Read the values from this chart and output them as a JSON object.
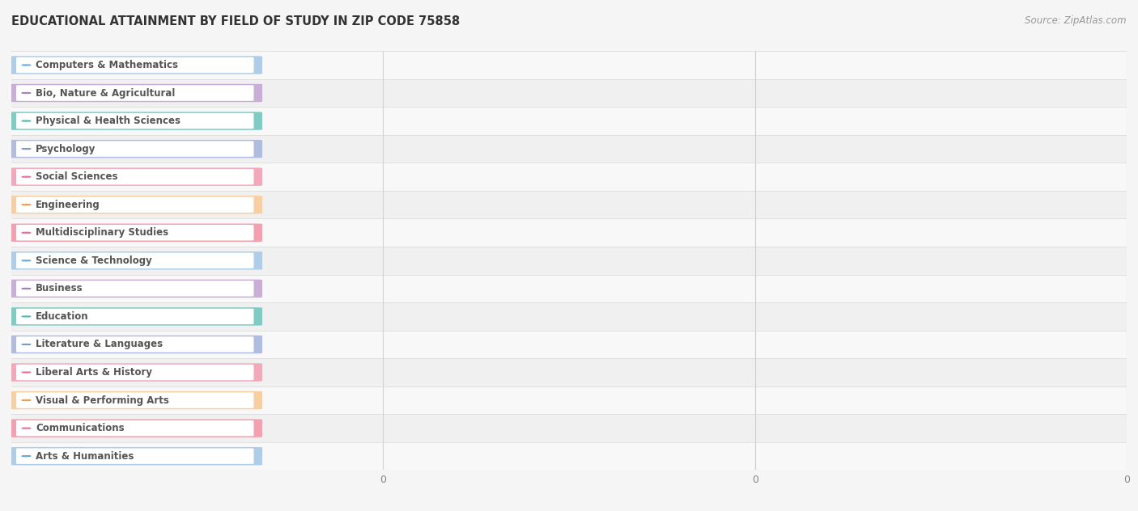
{
  "title": "EDUCATIONAL ATTAINMENT BY FIELD OF STUDY IN ZIP CODE 75858",
  "source": "Source: ZipAtlas.com",
  "categories": [
    "Computers & Mathematics",
    "Bio, Nature & Agricultural",
    "Physical & Health Sciences",
    "Psychology",
    "Social Sciences",
    "Engineering",
    "Multidisciplinary Studies",
    "Science & Technology",
    "Business",
    "Education",
    "Literature & Languages",
    "Liberal Arts & History",
    "Visual & Performing Arts",
    "Communications",
    "Arts & Humanities"
  ],
  "values": [
    0,
    0,
    0,
    0,
    0,
    0,
    0,
    0,
    0,
    0,
    0,
    0,
    0,
    0,
    0
  ],
  "bar_colors": [
    "#aecde8",
    "#c9aed8",
    "#7eccc4",
    "#b0bce0",
    "#f4a8bc",
    "#f8cfa0",
    "#f4a0b0",
    "#aecde8",
    "#c9aed8",
    "#7eccc4",
    "#b0bce0",
    "#f4a8bc",
    "#f8cfa0",
    "#f4a0b0",
    "#aecde8"
  ],
  "dot_colors": [
    "#6aaad8",
    "#a87ec0",
    "#50bab0",
    "#8098d0",
    "#e870a0",
    "#f0a050",
    "#e870a0",
    "#6aaad8",
    "#a87ec0",
    "#50bab0",
    "#8098d0",
    "#e870a0",
    "#f0a050",
    "#e870a0",
    "#6aaad8"
  ],
  "row_colors": [
    "#f8f8f8",
    "#f0f0f0"
  ],
  "background_color": "#f5f5f5",
  "title_fontsize": 10.5,
  "source_fontsize": 8.5,
  "label_fontsize": 8.5
}
